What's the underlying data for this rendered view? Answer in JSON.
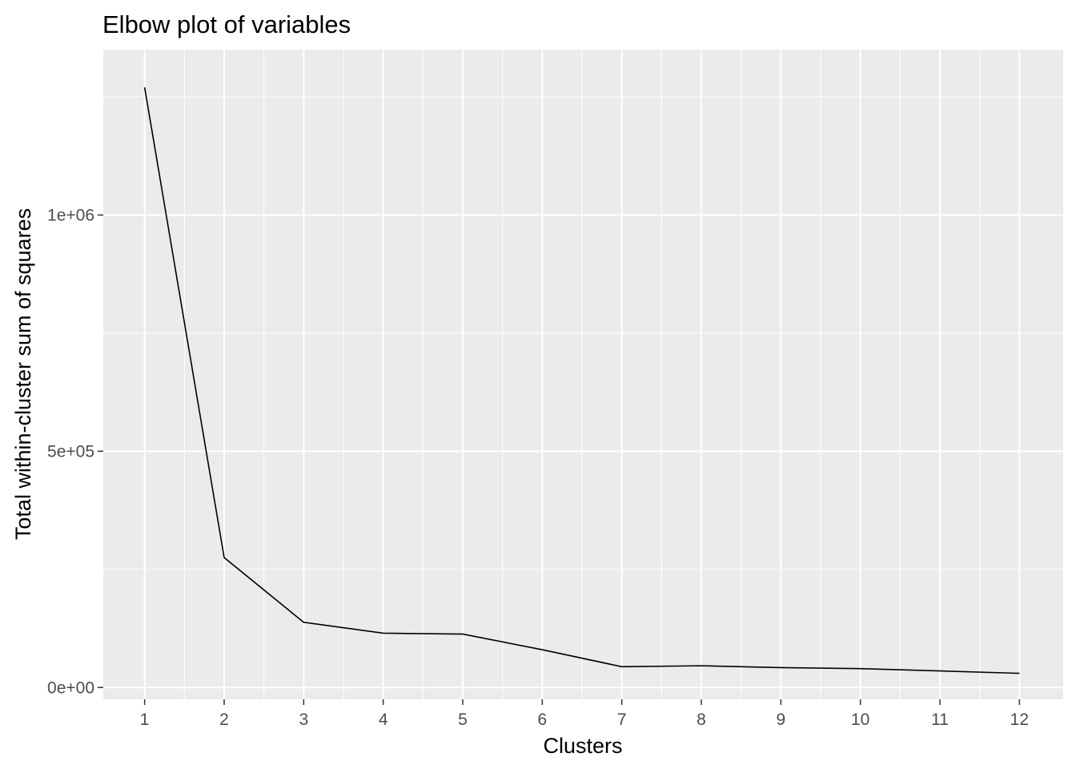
{
  "chart_data": {
    "type": "line",
    "title": "Elbow plot of variables",
    "xlabel": "Clusters",
    "ylabel": "Total within-cluster sum of squares",
    "x": [
      1,
      2,
      3,
      4,
      5,
      6,
      7,
      8,
      9,
      10,
      11,
      12
    ],
    "series": [
      {
        "values": [
          1270000,
          275000,
          138000,
          115000,
          113000,
          80000,
          44000,
          46000,
          42000,
          40000,
          35000,
          30000
        ]
      }
    ],
    "xlim": [
      0.48,
      12.55
    ],
    "ylim": [
      -25000,
      1350000
    ],
    "x_ticks": [
      1,
      2,
      3,
      4,
      5,
      6,
      7,
      8,
      9,
      10,
      11,
      12
    ],
    "x_tick_labels": [
      "1",
      "2",
      "3",
      "4",
      "5",
      "6",
      "7",
      "8",
      "9",
      "10",
      "11",
      "12"
    ],
    "y_ticks": [
      0,
      500000,
      1000000
    ],
    "y_tick_labels": [
      "0e+00",
      "5e+05",
      "1e+06"
    ],
    "grid": true,
    "colors": {
      "panel_background": "#ebebeb",
      "grid_line": "#ffffff",
      "series_line": "#000000",
      "tick_label": "#4d4d4d",
      "tick_mark": "#333333"
    }
  }
}
